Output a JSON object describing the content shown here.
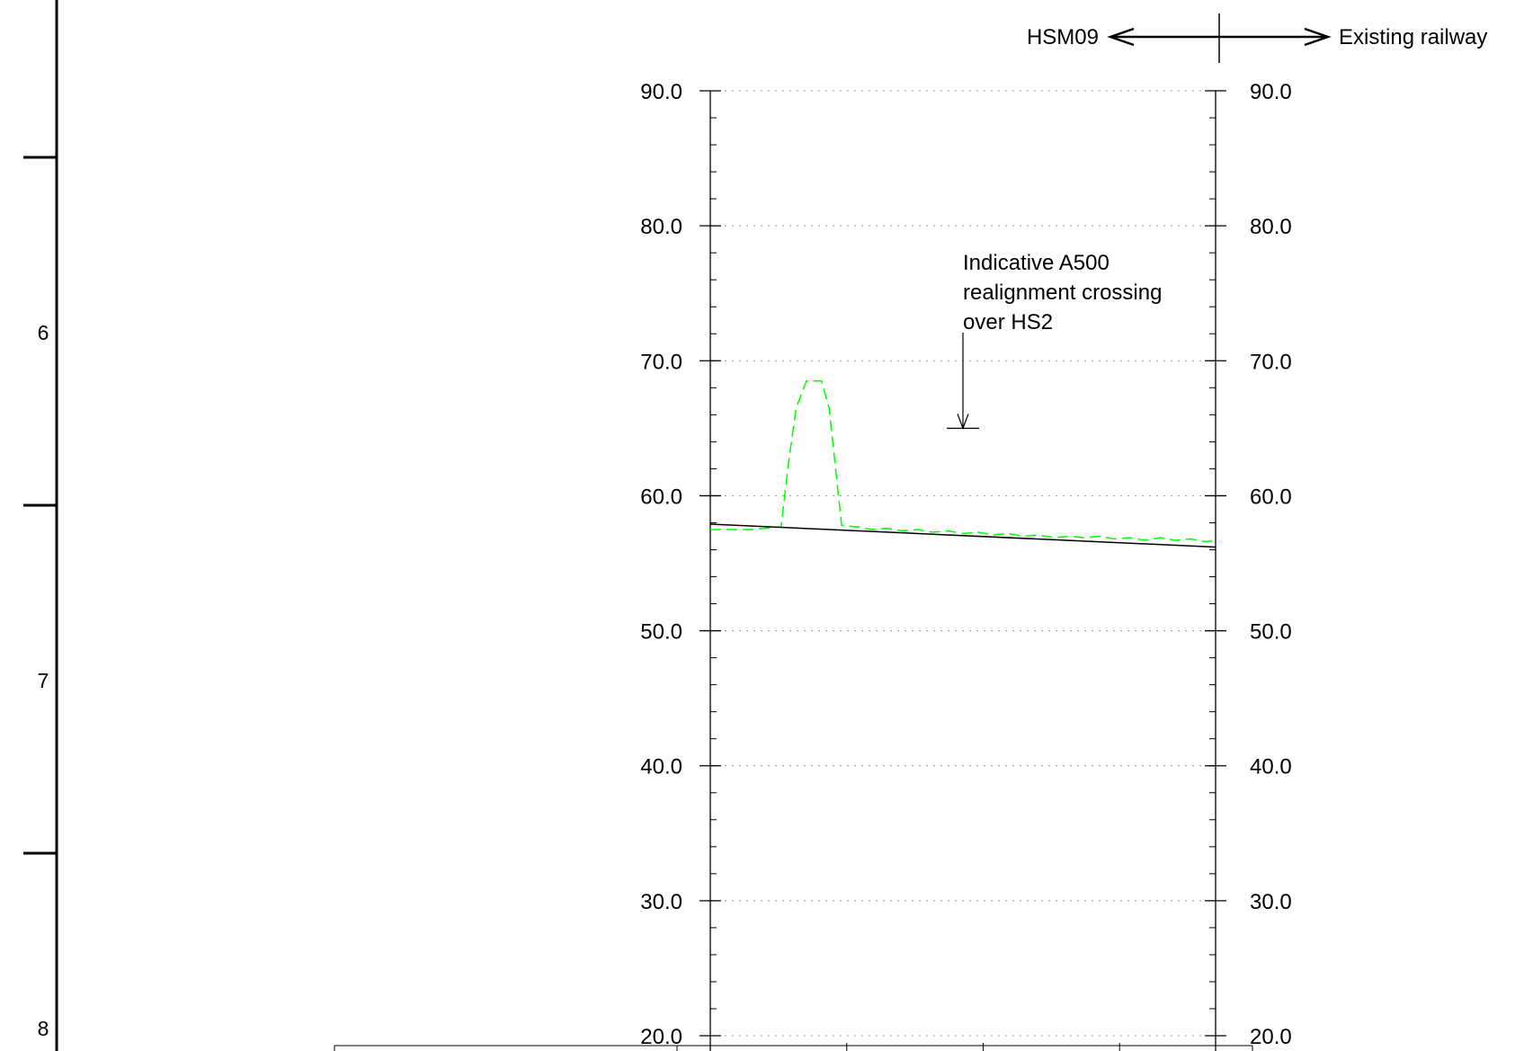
{
  "direction_indicator": {
    "left_label": "HSM09",
    "right_label": "Existing railway"
  },
  "sheet_frame": {
    "row_labels": [
      "6",
      "7",
      "8"
    ]
  },
  "chart_data": {
    "type": "line",
    "title": "",
    "xlabel": "",
    "ylabel": "",
    "ylim": [
      20.0,
      90.0
    ],
    "y_ticks": [
      "20.0",
      "30.0",
      "40.0",
      "50.0",
      "60.0",
      "70.0",
      "80.0",
      "90.0"
    ],
    "y_minor_step": 2.0,
    "grid": "horizontal dotted at each major tick",
    "series": [
      {
        "role": "existing ground profile",
        "color": "#00ff00",
        "style": "dashed",
        "x": [
          0.0,
          0.08,
          0.14,
          0.155,
          0.17,
          0.19,
          0.22,
          0.235,
          0.26,
          0.29,
          0.32,
          0.35,
          0.38,
          0.41,
          0.44,
          0.47,
          0.5,
          0.53,
          0.56,
          0.59,
          0.62,
          0.65,
          0.68,
          0.71,
          0.74,
          0.77,
          0.8,
          0.83,
          0.86,
          0.89,
          0.92,
          0.95,
          0.98,
          1.0
        ],
        "values": [
          57.5,
          57.5,
          57.7,
          62.5,
          66.5,
          68.5,
          68.5,
          66.5,
          57.8,
          57.7,
          57.5,
          57.6,
          57.4,
          57.5,
          57.3,
          57.4,
          57.2,
          57.3,
          57.1,
          57.2,
          57.0,
          57.1,
          56.9,
          57.0,
          56.9,
          57.0,
          56.8,
          56.9,
          56.7,
          56.9,
          56.7,
          56.8,
          56.6,
          56.7
        ]
      },
      {
        "role": "proposed alignment",
        "color": "#000000",
        "style": "solid",
        "x": [
          0.0,
          1.0
        ],
        "values": [
          57.9,
          56.2
        ]
      }
    ],
    "annotations": [
      {
        "text_lines": [
          "Indicative A500",
          "realignment crossing",
          "over HS2"
        ],
        "x": 0.5,
        "level": 65.0
      }
    ]
  }
}
